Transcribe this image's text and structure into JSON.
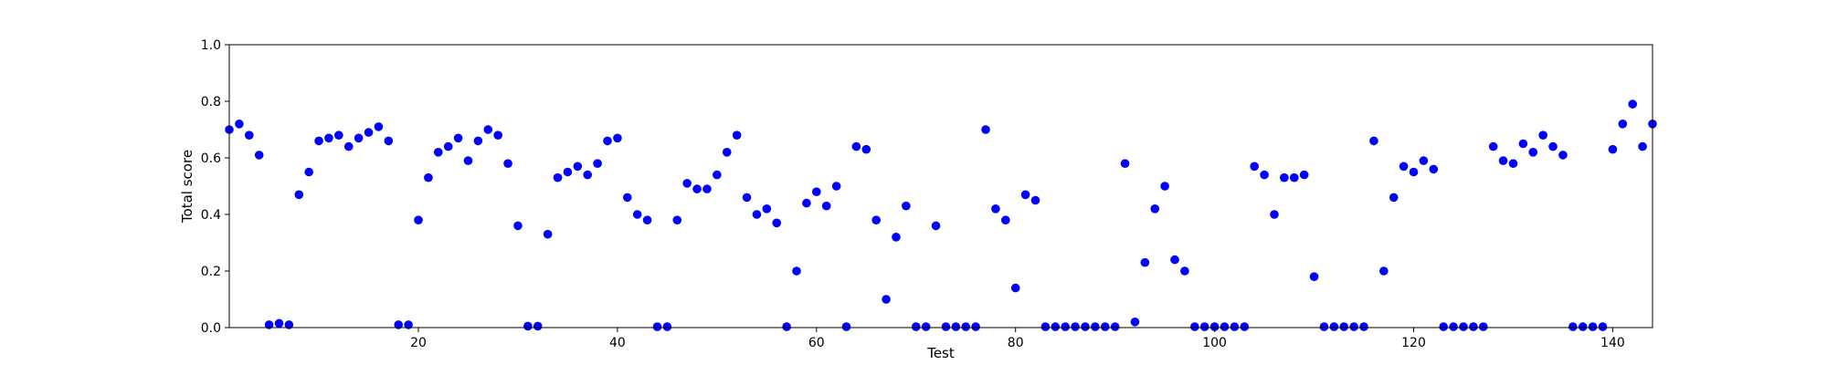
{
  "chart_data": {
    "type": "scatter",
    "title": "",
    "xlabel": "Test",
    "ylabel": "Total score",
    "xlim": [
      1,
      144
    ],
    "ylim": [
      0,
      1.0
    ],
    "xticks": [
      20,
      40,
      60,
      80,
      100,
      120,
      140
    ],
    "yticks": [
      0.0,
      0.2,
      0.4,
      0.6,
      0.8,
      1.0
    ],
    "ytick_labels": [
      "0.0",
      "0.2",
      "0.4",
      "0.6",
      "0.8",
      "1.0"
    ],
    "grid": false,
    "point_color": "#0000ff",
    "series": [
      {
        "x": [
          1,
          2,
          3,
          4,
          5,
          6,
          7,
          8,
          9,
          10,
          11,
          12,
          13,
          14,
          15,
          16,
          17,
          18,
          19,
          20,
          21,
          22,
          23,
          24,
          25,
          26,
          27,
          28,
          29,
          30,
          31,
          32,
          33,
          34,
          35,
          36,
          37,
          38,
          39,
          40,
          41,
          42,
          43,
          44,
          45,
          46,
          47,
          48,
          49,
          50,
          51,
          52,
          53,
          54,
          55,
          56,
          57,
          58,
          59,
          60,
          61,
          62,
          63,
          64,
          65,
          66,
          67,
          68,
          69,
          70,
          71,
          72,
          73,
          74,
          75,
          76,
          77,
          78,
          79,
          80,
          81,
          82,
          83,
          84,
          85,
          86,
          87,
          88,
          89,
          90,
          91,
          92,
          93,
          94,
          95,
          96,
          97,
          98,
          99,
          100,
          101,
          102,
          103,
          104,
          105,
          106,
          107,
          108,
          109,
          110,
          111,
          112,
          113,
          114,
          115,
          116,
          117,
          118,
          119,
          120,
          121,
          122,
          123,
          124,
          125,
          126,
          127,
          128,
          129,
          130,
          131,
          132,
          133,
          134,
          135,
          136,
          137,
          138,
          139,
          140,
          141,
          142,
          143,
          144
        ],
        "y": [
          0.7,
          0.72,
          0.68,
          0.61,
          0.01,
          0.015,
          0.01,
          0.47,
          0.55,
          0.66,
          0.67,
          0.68,
          0.64,
          0.67,
          0.69,
          0.71,
          0.66,
          0.01,
          0.01,
          0.38,
          0.53,
          0.62,
          0.64,
          0.67,
          0.59,
          0.66,
          0.7,
          0.68,
          0.58,
          0.36,
          0.005,
          0.005,
          0.33,
          0.53,
          0.55,
          0.57,
          0.54,
          0.58,
          0.66,
          0.67,
          0.46,
          0.4,
          0.38,
          0.003,
          0.003,
          0.38,
          0.51,
          0.49,
          0.49,
          0.54,
          0.62,
          0.68,
          0.46,
          0.4,
          0.42,
          0.37,
          0.003,
          0.2,
          0.44,
          0.48,
          0.43,
          0.5,
          0.003,
          0.64,
          0.63,
          0.38,
          0.1,
          0.32,
          0.43,
          0.003,
          0.003,
          0.36,
          0.003,
          0.003,
          0.003,
          0.003,
          0.7,
          0.42,
          0.38,
          0.14,
          0.47,
          0.45,
          0.003,
          0.003,
          0.003,
          0.003,
          0.003,
          0.003,
          0.003,
          0.003,
          0.58,
          0.02,
          0.23,
          0.42,
          0.5,
          0.24,
          0.2,
          0.003,
          0.003,
          0.003,
          0.003,
          0.003,
          0.003,
          0.57,
          0.54,
          0.4,
          0.53,
          0.53,
          0.54,
          0.18,
          0.003,
          0.003,
          0.003,
          0.003,
          0.003,
          0.66,
          0.2,
          0.46,
          0.57,
          0.55,
          0.59,
          0.56,
          0.003,
          0.003,
          0.003,
          0.003,
          0.003,
          0.64,
          0.59,
          0.58,
          0.65,
          0.62,
          0.68,
          0.64,
          0.61,
          0.003,
          0.003,
          0.003,
          0.003,
          0.63,
          0.72,
          0.79,
          0.64,
          0.72
        ]
      }
    ]
  }
}
